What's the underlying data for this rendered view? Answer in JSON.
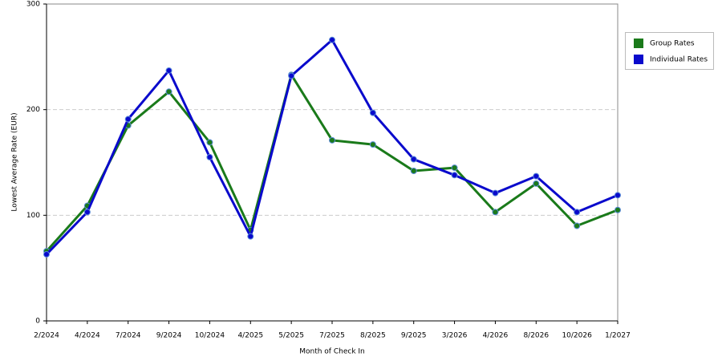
{
  "chart_data": {
    "type": "line",
    "x_label": "Month of Check In",
    "y_label": "Lowest Average Rate (EUR)",
    "categories": [
      "2/2024",
      "4/2024",
      "7/2024",
      "9/2024",
      "10/2024",
      "4/2025",
      "5/2025",
      "7/2025",
      "8/2025",
      "9/2025",
      "3/2026",
      "4/2026",
      "8/2026",
      "10/2026",
      "1/2027"
    ],
    "series": [
      {
        "name": "Group Rates",
        "color": "#1a7a1a",
        "values": [
          66,
          109,
          185,
          217,
          169,
          86,
          233,
          171,
          167,
          142,
          145,
          103,
          130,
          90,
          105
        ]
      },
      {
        "name": "Individual Rates",
        "color": "#0a0acc",
        "values": [
          63,
          103,
          191,
          237,
          155,
          80,
          232,
          266,
          197,
          153,
          138,
          121,
          137,
          103,
          119
        ]
      }
    ],
    "ylim": [
      0,
      300
    ],
    "yticks": [
      0,
      100,
      200,
      300
    ],
    "grid": true,
    "legend": "right"
  }
}
